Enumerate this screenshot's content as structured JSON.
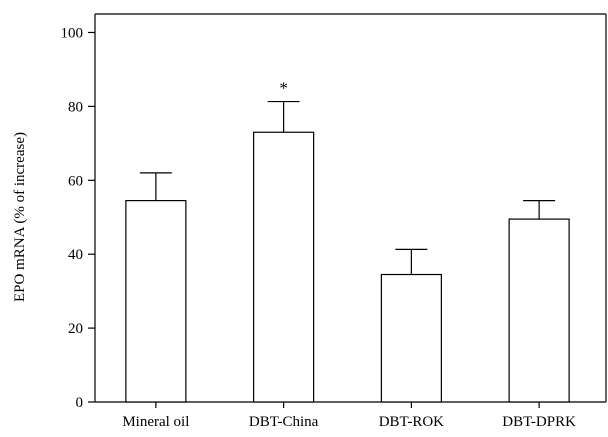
{
  "chart_data": {
    "type": "bar",
    "title": "",
    "xlabel": "",
    "ylabel": "EPO mRNA (% of increase)",
    "ylim": [
      0,
      105
    ],
    "yticks": [
      0,
      20,
      40,
      60,
      80,
      100
    ],
    "grid": false,
    "categories": [
      "Mineral oil",
      "DBT-China",
      "DBT-ROK",
      "DBT-DPRK"
    ],
    "values": [
      54.5,
      73,
      34.5,
      49.5
    ],
    "error_upper": [
      7.5,
      8.3,
      6.8,
      5.0
    ],
    "annotations": [
      "",
      "*",
      "",
      ""
    ],
    "colors": {
      "bar_fill": "#ffffff",
      "bar_stroke": "#000000",
      "axis": "#000000"
    }
  }
}
